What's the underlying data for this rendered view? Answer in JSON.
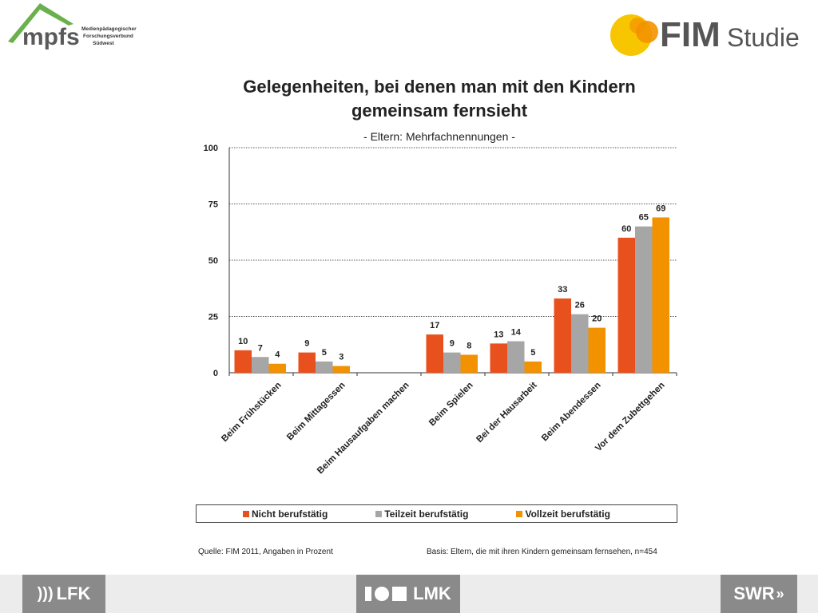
{
  "header": {
    "mpfs_logo_text": "mpfs",
    "mpfs_subtitle_lines": [
      "Medienpädagogischer",
      "Forschungsverbund",
      "Südwest"
    ],
    "fim_logo_text": "FIM",
    "fim_logo_studie": "Studie"
  },
  "footer": {
    "logo_left": "LFK",
    "logo_center": "LMK",
    "logo_right": "SWR",
    "source": "Quelle: FIM 2011,  Angaben in Prozent",
    "basis": "Basis: Eltern, die mit ihren Kindern gemeinsam fernsehen, n=454"
  },
  "colors": {
    "series": [
      "#e8511e",
      "#a6a6a6",
      "#f39200"
    ],
    "grid": "#555555",
    "footer_logo_bg": "#8a8a8a"
  },
  "chart_data": {
    "type": "bar",
    "title": "Gelegenheiten, bei denen man mit den Kindern gemeinsam fernsieht",
    "title_lines": [
      "Gelegenheiten, bei denen man mit den Kindern",
      "gemeinsam fernsieht"
    ],
    "subtitle": "- Eltern: Mehrfachnennungen -",
    "categories": [
      "Beim Frühstücken",
      "Beim Mittagessen",
      "Beim Hausaufgaben  machen",
      "Beim Spielen",
      "Bei der Hausarbeit",
      "Beim Abendessen",
      "Vor dem Zubettgehen"
    ],
    "series": [
      {
        "name": "Nicht berufstätig",
        "values": [
          10,
          9,
          null,
          17,
          13,
          33,
          60
        ]
      },
      {
        "name": "Teilzeit berufstätig",
        "values": [
          7,
          5,
          null,
          9,
          14,
          26,
          65
        ]
      },
      {
        "name": "Vollzeit berufstätig",
        "values": [
          4,
          3,
          null,
          8,
          5,
          20,
          69
        ]
      }
    ],
    "ylim": [
      0,
      100
    ],
    "yticks": [
      0,
      25,
      50,
      75,
      100
    ],
    "grid": true,
    "legend": "bottom",
    "xlabel": "",
    "ylabel": ""
  }
}
